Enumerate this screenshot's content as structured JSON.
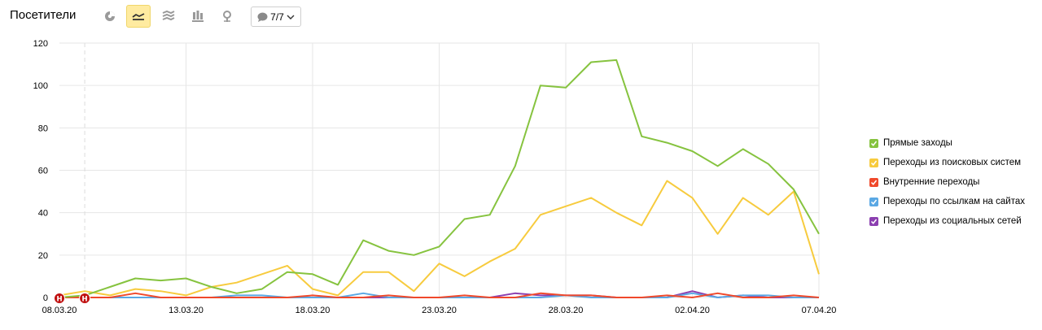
{
  "header": {
    "title": "Посетители",
    "counter": "7/7"
  },
  "toolbar_icons": [
    "pie-chart-icon",
    "line-chart-icon",
    "area-chart-icon",
    "bar-chart-icon",
    "map-icon"
  ],
  "holiday_marker": "Н",
  "chart_data": {
    "type": "line",
    "x": [
      "08.03.20",
      "09.03.20",
      "10.03.20",
      "11.03.20",
      "12.03.20",
      "13.03.20",
      "14.03.20",
      "15.03.20",
      "16.03.20",
      "17.03.20",
      "18.03.20",
      "19.03.20",
      "20.03.20",
      "21.03.20",
      "22.03.20",
      "23.03.20",
      "24.03.20",
      "25.03.20",
      "26.03.20",
      "27.03.20",
      "28.03.20",
      "29.03.20",
      "30.03.20",
      "31.03.20",
      "01.04.20",
      "02.04.20",
      "03.04.20",
      "04.04.20",
      "05.04.20",
      "06.04.20",
      "07.04.20"
    ],
    "x_tick_labels": [
      "08.03.20",
      "13.03.20",
      "18.03.20",
      "23.03.20",
      "28.03.20",
      "02.04.20",
      "07.04.20"
    ],
    "highlighted_ticks": [
      "08.03.20",
      "28.03.20"
    ],
    "y_ticks": [
      0,
      20,
      40,
      60,
      80,
      100,
      120
    ],
    "ylim": [
      0,
      120
    ],
    "grid": true,
    "legend_position": "right",
    "series": [
      {
        "name": "Прямые заходы",
        "color": "#86c33f",
        "values": [
          0,
          1,
          5,
          9,
          8,
          9,
          5,
          2,
          4,
          12,
          11,
          6,
          27,
          22,
          20,
          24,
          37,
          39,
          62,
          100,
          99,
          111,
          112,
          76,
          73,
          69,
          62,
          70,
          63,
          51,
          30
        ]
      },
      {
        "name": "Переходы из поисковых систем",
        "color": "#f7cb3e",
        "values": [
          1,
          3,
          1,
          4,
          3,
          1,
          5,
          7,
          11,
          15,
          4,
          1,
          12,
          12,
          3,
          16,
          10,
          17,
          23,
          39,
          43,
          47,
          40,
          34,
          55,
          47,
          30,
          47,
          39,
          50,
          11
        ]
      },
      {
        "name": "Внутренние переходы",
        "color": "#f0492b",
        "values": [
          0,
          0,
          0,
          2,
          0,
          0,
          0,
          0,
          0,
          0,
          1,
          0,
          0,
          1,
          0,
          0,
          1,
          0,
          0,
          2,
          1,
          1,
          0,
          0,
          1,
          0,
          2,
          0,
          0,
          1,
          0
        ]
      },
      {
        "name": "Переходы по ссылкам на сайтах",
        "color": "#5aa8e4",
        "values": [
          0,
          0,
          0,
          0,
          0,
          0,
          0,
          1,
          1,
          0,
          0,
          0,
          2,
          0,
          0,
          0,
          0,
          0,
          0,
          0,
          1,
          0,
          0,
          0,
          0,
          2,
          0,
          1,
          1,
          0,
          0
        ]
      },
      {
        "name": "Переходы из социальных сетей",
        "color": "#8b3fb0",
        "values": [
          0,
          0,
          0,
          0,
          0,
          0,
          0,
          0,
          0,
          0,
          0,
          0,
          0,
          0,
          0,
          0,
          0,
          0,
          2,
          1,
          1,
          1,
          0,
          0,
          0,
          3,
          0,
          1,
          0,
          0,
          0
        ]
      }
    ]
  }
}
